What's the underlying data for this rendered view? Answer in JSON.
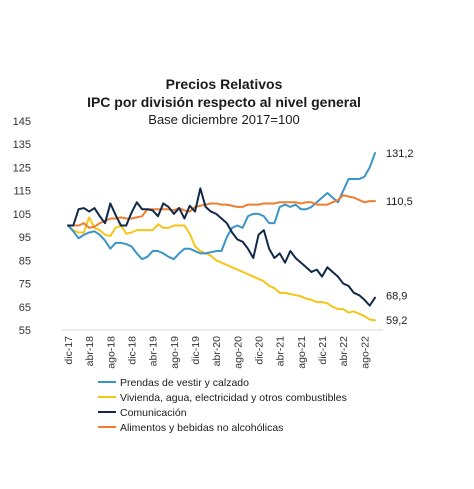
{
  "chart_data": {
    "type": "line",
    "title": "Precios Relativos",
    "subtitle": "IPC por división respecto al nivel general",
    "subtitle2": "Base diciembre 2017=100",
    "xlabel": "",
    "ylabel": "",
    "ylim": [
      55,
      145
    ],
    "yticks": [
      "145",
      "135",
      "125",
      "115",
      "105",
      "95",
      "85",
      "75",
      "65",
      "55"
    ],
    "x": [
      "dic-17",
      "ene-18",
      "feb-18",
      "mar-18",
      "abr-18",
      "may-18",
      "jun-18",
      "jul-18",
      "ago-18",
      "sep-18",
      "oct-18",
      "nov-18",
      "dic-18",
      "ene-19",
      "feb-19",
      "mar-19",
      "abr-19",
      "may-19",
      "jun-19",
      "jul-19",
      "ago-19",
      "sep-19",
      "oct-19",
      "nov-19",
      "dic-19",
      "ene-20",
      "feb-20",
      "mar-20",
      "abr-20",
      "may-20",
      "jun-20",
      "jul-20",
      "ago-20",
      "sep-20",
      "oct-20",
      "nov-20",
      "dic-20",
      "ene-21",
      "feb-21",
      "mar-21",
      "abr-21",
      "may-21",
      "jun-21",
      "jul-21",
      "ago-21",
      "sep-21",
      "oct-21",
      "nov-21",
      "dic-21",
      "ene-22",
      "feb-22",
      "mar-22",
      "abr-22",
      "may-22",
      "jun-22",
      "jul-22",
      "ago-22",
      "sep-22",
      "oct-22"
    ],
    "xtick_labels": [
      "dic-17",
      "abr-18",
      "ago-18",
      "dic-18",
      "abr-19",
      "ago-19",
      "dic-19",
      "abr-20",
      "ago-20",
      "dic-20",
      "abr-21",
      "ago-21",
      "dic-21",
      "abr-22",
      "ago-22"
    ],
    "grid": false,
    "legend_placement": "bottom",
    "series": [
      {
        "name": "Prendas de vestir y calzado",
        "color": "#3a95c9",
        "end_label": "131,2",
        "values": [
          100,
          97.5,
          94.5,
          96,
          97,
          97.5,
          96,
          93.5,
          90,
          92.5,
          92.5,
          92,
          91,
          88,
          85.5,
          86.5,
          89,
          89,
          88,
          86.5,
          85.5,
          88,
          90,
          90,
          89,
          88,
          88,
          88.5,
          89,
          89,
          95,
          99,
          100,
          99,
          104,
          105,
          105,
          104,
          101,
          101,
          108,
          109,
          108,
          109,
          107,
          107,
          108,
          110,
          112,
          114,
          112,
          110,
          115,
          120,
          120,
          120,
          121,
          125,
          131.2
        ]
      },
      {
        "name": "Vivienda, agua, electricidad y otros combustibles",
        "color": "#f5c518",
        "end_label": "59,2",
        "values": [
          100,
          98,
          97,
          97,
          103.5,
          99,
          98,
          96,
          95.5,
          99,
          100,
          96.5,
          97,
          98,
          98,
          98,
          98,
          100.5,
          99,
          99,
          100,
          100,
          100,
          96.5,
          91,
          89,
          88,
          87,
          85,
          84,
          83,
          82,
          81,
          80,
          79,
          78,
          77,
          76,
          74,
          73,
          71,
          71,
          70.5,
          70,
          69.5,
          68.5,
          68,
          67,
          67,
          66.5,
          65,
          64,
          64,
          62.5,
          63,
          62,
          61,
          59.5,
          59.2
        ]
      },
      {
        "name": "Comunicación",
        "color": "#12294a",
        "end_label": "68,9",
        "values": [
          100,
          100,
          107,
          107.5,
          106,
          107.5,
          104,
          101,
          109.5,
          104.5,
          100,
          100,
          105.5,
          110,
          107,
          107,
          106.5,
          104,
          109.5,
          108,
          105,
          107.5,
          103,
          108.5,
          106,
          116,
          108,
          106,
          105,
          103,
          101,
          97,
          94,
          93,
          90,
          86,
          96,
          98,
          90,
          86,
          88,
          84,
          89,
          86,
          84,
          82,
          80,
          81,
          78,
          82,
          80,
          78,
          75,
          74,
          71,
          70,
          68,
          65.5,
          68.9
        ]
      },
      {
        "name": "Alimentos y bebidas no alcohólicas",
        "color": "#ef7d32",
        "end_label": "110,5",
        "values": [
          100,
          100,
          100,
          101,
          99,
          99.5,
          101,
          102,
          103,
          103,
          103.5,
          103,
          103,
          103.5,
          104,
          107,
          107,
          107,
          107,
          107,
          106.5,
          107.5,
          106.5,
          106,
          108,
          108.5,
          109,
          109.5,
          109.5,
          109,
          109,
          108.5,
          108,
          108,
          109,
          109,
          109,
          109.5,
          109.5,
          109.5,
          110,
          110,
          110,
          110,
          109.5,
          110,
          110,
          109,
          109,
          109,
          110,
          111,
          113,
          112.5,
          112,
          111,
          110,
          110.5,
          110.5
        ]
      }
    ]
  }
}
